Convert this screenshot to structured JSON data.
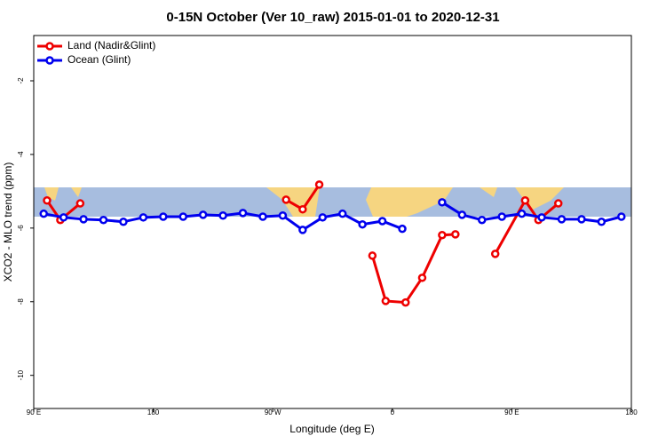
{
  "chart_data": {
    "type": "line",
    "title": "0-15N October (Ver 10_raw)   2015-01-01 to 2020-12-31",
    "x_label": "Longitude (deg E)",
    "y_label": "XCO2 - MLO trend (ppm)",
    "xlim": [
      90,
      540
    ],
    "xticks": [
      {
        "value": 90,
        "label": "90 E"
      },
      180,
      {
        "value": 270,
        "label": "90 W"
      },
      {
        "value": 360,
        "label": "0"
      },
      {
        "value": 450,
        "label": "90 E"
      },
      {
        "value": 540,
        "label": "180"
      }
    ],
    "ylim": [
      -10.9,
      -0.77
    ],
    "yticks": [
      -10,
      -8,
      -6,
      -4,
      -2
    ],
    "legend": "top-left",
    "series": [
      {
        "name": "Land (Nadir&Glint)",
        "color": "#ee0000",
        "x": [
          100,
          110,
          125,
          200,
          280,
          292.5,
          305,
          325,
          345,
          355,
          370,
          382.5,
          397.5,
          407.5,
          420,
          437.5,
          460,
          470,
          485
        ],
        "values": [
          -5.25,
          -5.78,
          -5.33,
          null,
          -5.23,
          -5.49,
          -4.82,
          null,
          -6.75,
          -7.98,
          -8.02,
          -7.35,
          -6.19,
          -6.17,
          null,
          -6.7,
          -5.25,
          -5.78,
          -5.33
        ]
      },
      {
        "name": "Ocean (Glint)",
        "color": "#0000ee",
        "x": [
          97.5,
          112.5,
          127.5,
          142.5,
          157.5,
          172.5,
          187.5,
          202.5,
          217.5,
          232.5,
          247.5,
          262.5,
          277.5,
          292.5,
          307.5,
          322.5,
          337.5,
          352.5,
          367.5,
          382.5,
          397.5,
          412.5,
          427.5,
          442.5,
          457.5,
          472.5,
          487.5,
          502.5,
          517.5,
          532.5
        ],
        "values": [
          -5.61,
          -5.71,
          -5.76,
          -5.78,
          -5.83,
          -5.71,
          -5.69,
          -5.69,
          -5.64,
          -5.66,
          -5.59,
          -5.69,
          -5.66,
          -6.05,
          -5.71,
          -5.61,
          -5.9,
          -5.81,
          -6.02,
          null,
          -5.3,
          -5.64,
          -5.78,
          -5.69,
          -5.61,
          -5.71,
          -5.76,
          -5.76,
          -5.83,
          -5.69
        ]
      }
    ]
  }
}
